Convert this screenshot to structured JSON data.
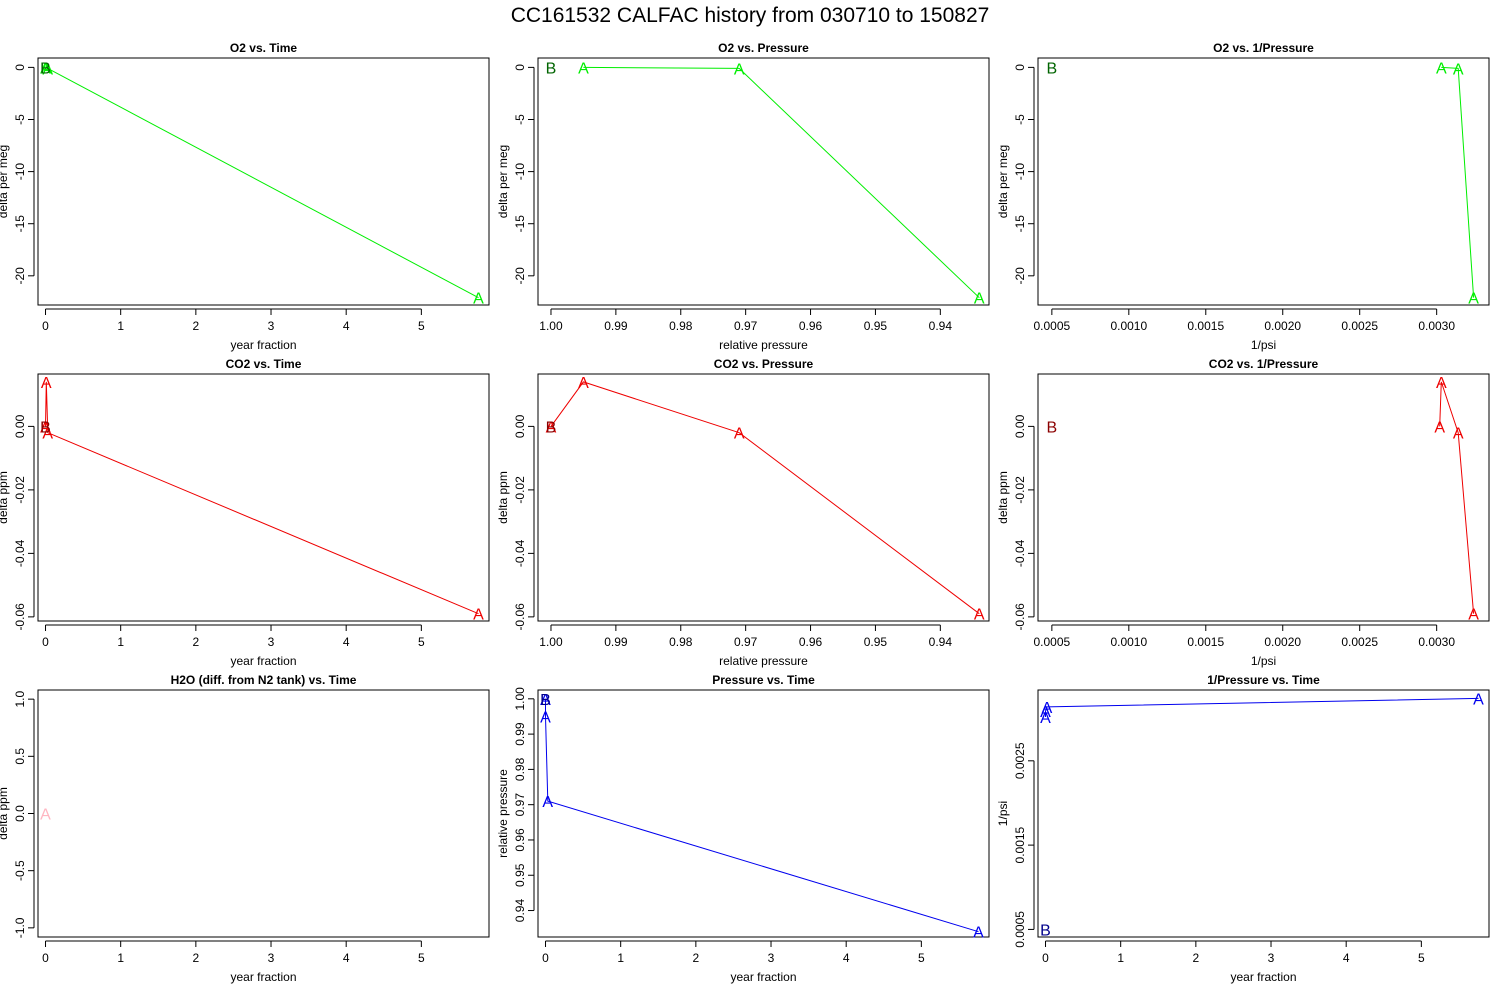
{
  "title": "CC161532   CALFAC history from  030710  to  150827",
  "colors": {
    "o2": "#00ee00",
    "o2_b": "#006400",
    "co2": "#ee0000",
    "co2_b": "#8b0000",
    "h2o": "#ffb6c1",
    "pres": "#0000ee",
    "pres_b": "#00008b",
    "axis": "#000000"
  },
  "chart_data": [
    {
      "id": "o2-time",
      "type": "line",
      "title": "O2 vs. Time",
      "xlabel": "year fraction",
      "ylabel": "delta per meg",
      "xlim": [
        -0.1,
        5.9
      ],
      "ylim": [
        -22.8,
        0.9
      ],
      "xticks": [
        0,
        1,
        2,
        3,
        4,
        5
      ],
      "xticklabels": [
        "0",
        "1",
        "2",
        "3",
        "4",
        "5"
      ],
      "yticks": [
        0,
        -5,
        -10,
        -15,
        -20
      ],
      "yticklabels": [
        "0",
        "-5",
        "-10",
        "-15",
        "-20"
      ],
      "color_key": "o2",
      "series": [
        {
          "name": "A",
          "color_key": "o2",
          "line": true,
          "x": [
            0.0,
            0.01,
            0.03,
            5.76
          ],
          "y": [
            0.0,
            0.0,
            -0.1,
            -22.1
          ],
          "labels": [
            "A",
            "A",
            "A",
            "A"
          ]
        },
        {
          "name": "B",
          "color_key": "o2_b",
          "line": false,
          "x": [
            0.0
          ],
          "y": [
            0.0
          ],
          "labels": [
            "B"
          ]
        }
      ]
    },
    {
      "id": "o2-pres",
      "type": "line",
      "title": "O2 vs. Pressure",
      "xlabel": "relative pressure",
      "ylabel": "delta per meg",
      "xlim": [
        1.002,
        0.9325
      ],
      "ylim": [
        -22.8,
        0.9
      ],
      "xticks": [
        1.0,
        0.99,
        0.98,
        0.97,
        0.96,
        0.95,
        0.94
      ],
      "xticklabels": [
        "1.00",
        "0.99",
        "0.98",
        "0.97",
        "0.96",
        "0.95",
        "0.94"
      ],
      "yticks": [
        0,
        -5,
        -10,
        -15,
        -20
      ],
      "yticklabels": [
        "0",
        "-5",
        "-10",
        "-15",
        "-20"
      ],
      "color_key": "o2",
      "series": [
        {
          "name": "A",
          "color_key": "o2",
          "line": true,
          "x": [
            0.995,
            0.971,
            0.934
          ],
          "y": [
            0.0,
            -0.1,
            -22.1
          ],
          "labels": [
            "A",
            "A",
            "A"
          ]
        },
        {
          "name": "B",
          "color_key": "o2_b",
          "line": false,
          "x": [
            1.0
          ],
          "y": [
            0.0
          ],
          "labels": [
            "B"
          ]
        }
      ]
    },
    {
      "id": "o2-invpres",
      "type": "line",
      "title": "O2 vs. 1/Pressure",
      "xlabel": "1/psi",
      "ylabel": "delta per meg",
      "xlim": [
        0.00041,
        0.00334
      ],
      "ylim": [
        -22.8,
        0.9
      ],
      "xticks": [
        0.0005,
        0.001,
        0.0015,
        0.002,
        0.0025,
        0.003
      ],
      "xticklabels": [
        "0.0005",
        "0.0010",
        "0.0015",
        "0.0020",
        "0.0025",
        "0.0030"
      ],
      "yticks": [
        0,
        -5,
        -10,
        -15,
        -20
      ],
      "yticklabels": [
        "0",
        "-5",
        "-10",
        "-15",
        "-20"
      ],
      "color_key": "o2",
      "series": [
        {
          "name": "A",
          "color_key": "o2",
          "line": true,
          "x": [
            0.00303,
            0.00314,
            0.00324
          ],
          "y": [
            0.0,
            -0.1,
            -22.1
          ],
          "labels": [
            "A",
            "A",
            "A"
          ]
        },
        {
          "name": "B",
          "color_key": "o2_b",
          "line": false,
          "x": [
            0.0005
          ],
          "y": [
            0.0
          ],
          "labels": [
            "B"
          ]
        }
      ]
    },
    {
      "id": "co2-time",
      "type": "line",
      "title": "CO2 vs. Time",
      "xlabel": "year fraction",
      "ylabel": "delta ppm",
      "xlim": [
        -0.1,
        5.9
      ],
      "ylim": [
        -0.0613,
        0.0165
      ],
      "xticks": [
        0,
        1,
        2,
        3,
        4,
        5
      ],
      "xticklabels": [
        "0",
        "1",
        "2",
        "3",
        "4",
        "5"
      ],
      "yticks": [
        0.0,
        -0.02,
        -0.04,
        -0.06
      ],
      "yticklabels": [
        "0.00",
        "-0.02",
        "-0.04",
        "-0.06"
      ],
      "color_key": "co2",
      "series": [
        {
          "name": "A",
          "color_key": "co2",
          "line": true,
          "x": [
            0.0,
            0.01,
            0.03,
            5.76
          ],
          "y": [
            0.0,
            0.014,
            -0.002,
            -0.059
          ],
          "labels": [
            "A",
            "A",
            "A",
            "A"
          ]
        },
        {
          "name": "B",
          "color_key": "co2_b",
          "line": false,
          "x": [
            0.0
          ],
          "y": [
            0.0
          ],
          "labels": [
            "B"
          ]
        }
      ]
    },
    {
      "id": "co2-pres",
      "type": "line",
      "title": "CO2 vs. Pressure",
      "xlabel": "relative pressure",
      "ylabel": "delta ppm",
      "xlim": [
        1.002,
        0.9325
      ],
      "ylim": [
        -0.0613,
        0.0165
      ],
      "xticks": [
        1.0,
        0.99,
        0.98,
        0.97,
        0.96,
        0.95,
        0.94
      ],
      "xticklabels": [
        "1.00",
        "0.99",
        "0.98",
        "0.97",
        "0.96",
        "0.95",
        "0.94"
      ],
      "yticks": [
        0.0,
        -0.02,
        -0.04,
        -0.06
      ],
      "yticklabels": [
        "0.00",
        "-0.02",
        "-0.04",
        "-0.06"
      ],
      "color_key": "co2",
      "series": [
        {
          "name": "A",
          "color_key": "co2",
          "line": true,
          "x": [
            1.0,
            0.995,
            0.971,
            0.934
          ],
          "y": [
            0.0,
            0.014,
            -0.002,
            -0.059
          ],
          "labels": [
            "A",
            "A",
            "A",
            "A"
          ]
        },
        {
          "name": "B",
          "color_key": "co2_b",
          "line": false,
          "x": [
            1.0
          ],
          "y": [
            0.0
          ],
          "labels": [
            "B"
          ]
        }
      ]
    },
    {
      "id": "co2-invpres",
      "type": "line",
      "title": "CO2 vs. 1/Pressure",
      "xlabel": "1/psi",
      "ylabel": "delta ppm",
      "xlim": [
        0.00041,
        0.00334
      ],
      "ylim": [
        -0.0613,
        0.0165
      ],
      "xticks": [
        0.0005,
        0.001,
        0.0015,
        0.002,
        0.0025,
        0.003
      ],
      "xticklabels": [
        "0.0005",
        "0.0010",
        "0.0015",
        "0.0020",
        "0.0025",
        "0.0030"
      ],
      "yticks": [
        0.0,
        -0.02,
        -0.04,
        -0.06
      ],
      "yticklabels": [
        "0.00",
        "-0.02",
        "-0.04",
        "-0.06"
      ],
      "color_key": "co2",
      "series": [
        {
          "name": "A",
          "color_key": "co2",
          "line": true,
          "x": [
            0.00302,
            0.00303,
            0.00314,
            0.00324
          ],
          "y": [
            0.0,
            0.014,
            -0.002,
            -0.059
          ],
          "labels": [
            "A",
            "A",
            "A",
            "A"
          ]
        },
        {
          "name": "B",
          "color_key": "co2_b",
          "line": false,
          "x": [
            0.0005
          ],
          "y": [
            0.0
          ],
          "labels": [
            "B"
          ]
        }
      ]
    },
    {
      "id": "h2o-time",
      "type": "scatter",
      "title": "H2O (diff. from N2 tank) vs. Time",
      "xlabel": "year fraction",
      "ylabel": "delta ppm",
      "xlim": [
        -0.1,
        5.9
      ],
      "ylim": [
        -1.08,
        1.08
      ],
      "xticks": [
        0,
        1,
        2,
        3,
        4,
        5
      ],
      "xticklabels": [
        "0",
        "1",
        "2",
        "3",
        "4",
        "5"
      ],
      "yticks": [
        1.0,
        0.5,
        0.0,
        -0.5,
        -1.0
      ],
      "yticklabels": [
        "1.0",
        "0.5",
        "0.0",
        "-0.5",
        "-1.0"
      ],
      "color_key": "h2o",
      "series": [
        {
          "name": "A",
          "color_key": "h2o",
          "line": false,
          "x": [
            0.0
          ],
          "y": [
            0.0
          ],
          "labels": [
            "A"
          ]
        }
      ]
    },
    {
      "id": "pres-time",
      "type": "line",
      "title": "Pressure vs. Time",
      "xlabel": "year fraction",
      "ylabel": "relative pressure",
      "xlim": [
        -0.1,
        5.9
      ],
      "ylim": [
        0.9325,
        1.0025
      ],
      "xticks": [
        0,
        1,
        2,
        3,
        4,
        5
      ],
      "xticklabels": [
        "0",
        "1",
        "2",
        "3",
        "4",
        "5"
      ],
      "yticks": [
        1.0,
        0.99,
        0.98,
        0.97,
        0.96,
        0.95,
        0.94
      ],
      "yticklabels": [
        "1.00",
        "0.99",
        "0.98",
        "0.97",
        "0.96",
        "0.95",
        "0.94"
      ],
      "color_key": "pres",
      "series": [
        {
          "name": "A",
          "color_key": "pres",
          "line": true,
          "x": [
            0.0,
            0.0,
            0.03,
            5.76
          ],
          "y": [
            1.0,
            0.995,
            0.971,
            0.934
          ],
          "labels": [
            "A",
            "A",
            "A",
            "A"
          ]
        },
        {
          "name": "B",
          "color_key": "pres_b",
          "line": false,
          "x": [
            0.0
          ],
          "y": [
            1.0
          ],
          "labels": [
            "B"
          ]
        }
      ]
    },
    {
      "id": "invpres-time",
      "type": "line",
      "title": "1/Pressure vs. Time",
      "xlabel": "year fraction",
      "ylabel": "1/psi",
      "xlim": [
        -0.1,
        5.9
      ],
      "ylim": [
        0.00041,
        0.00334
      ],
      "xticks": [
        0,
        1,
        2,
        3,
        4,
        5
      ],
      "xticklabels": [
        "0",
        "1",
        "2",
        "3",
        "4",
        "5"
      ],
      "yticks": [
        0.0025,
        0.0015,
        0.0005
      ],
      "yticklabels": [
        "0.0025",
        "0.0015",
        "0.0005"
      ],
      "color_key": "pres",
      "series": [
        {
          "name": "A",
          "color_key": "pres",
          "line": true,
          "x": [
            0.0,
            0.0,
            0.02,
            5.76
          ],
          "y": [
            0.00302,
            0.00309,
            0.00314,
            0.00324
          ],
          "labels": [
            "A",
            "A",
            "A",
            "A"
          ]
        },
        {
          "name": "B",
          "color_key": "pres_b",
          "line": false,
          "x": [
            0.0
          ],
          "y": [
            0.0005
          ],
          "labels": [
            "B"
          ]
        }
      ]
    }
  ]
}
